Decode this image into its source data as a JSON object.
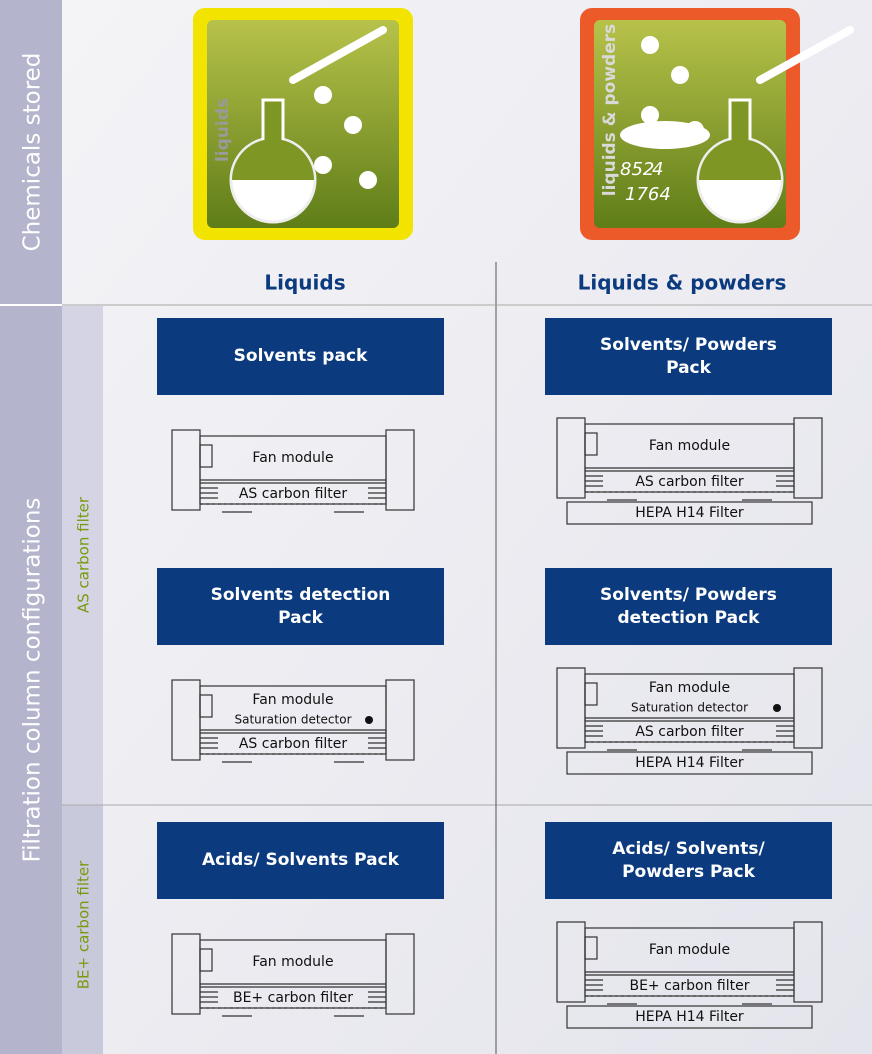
{
  "side_headers": {
    "chemicals": "Chemicals stored",
    "filtration": "Filtration column configurations"
  },
  "filter_types": [
    "AS carbon filter",
    "BE+ carbon filter"
  ],
  "columns": [
    {
      "title": "Liquids",
      "icon_label": "liquids"
    },
    {
      "title": "Liquids & powders",
      "icon_label": "liquids & powders",
      "icon_numbers": [
        "852",
        "4",
        "1764"
      ]
    }
  ],
  "packs": [
    {
      "title": "Solvents pack",
      "fan": "Fan module",
      "filter": "AS carbon filter"
    },
    {
      "title": "Solvents/ Powders Pack",
      "fan": "Fan module",
      "filter": "AS carbon filter",
      "hepa": "HEPA H14 Filter"
    },
    {
      "title": "Solvents detection Pack",
      "fan": "Fan module",
      "detector": "Saturation detector",
      "filter": "AS carbon filter"
    },
    {
      "title": "Solvents/ Powders detection Pack",
      "fan": "Fan module",
      "detector": "Saturation detector",
      "filter": "AS carbon filter",
      "hepa": "HEPA H14 Filter"
    },
    {
      "title": "Acids/ Solvents Pack",
      "fan": "Fan module",
      "filter": "BE+ carbon filter"
    },
    {
      "title": "Acids/ Solvents/ Powders Pack",
      "fan": "Fan module",
      "filter": "BE+ carbon filter",
      "hepa": "HEPA H14 Filter"
    }
  ]
}
